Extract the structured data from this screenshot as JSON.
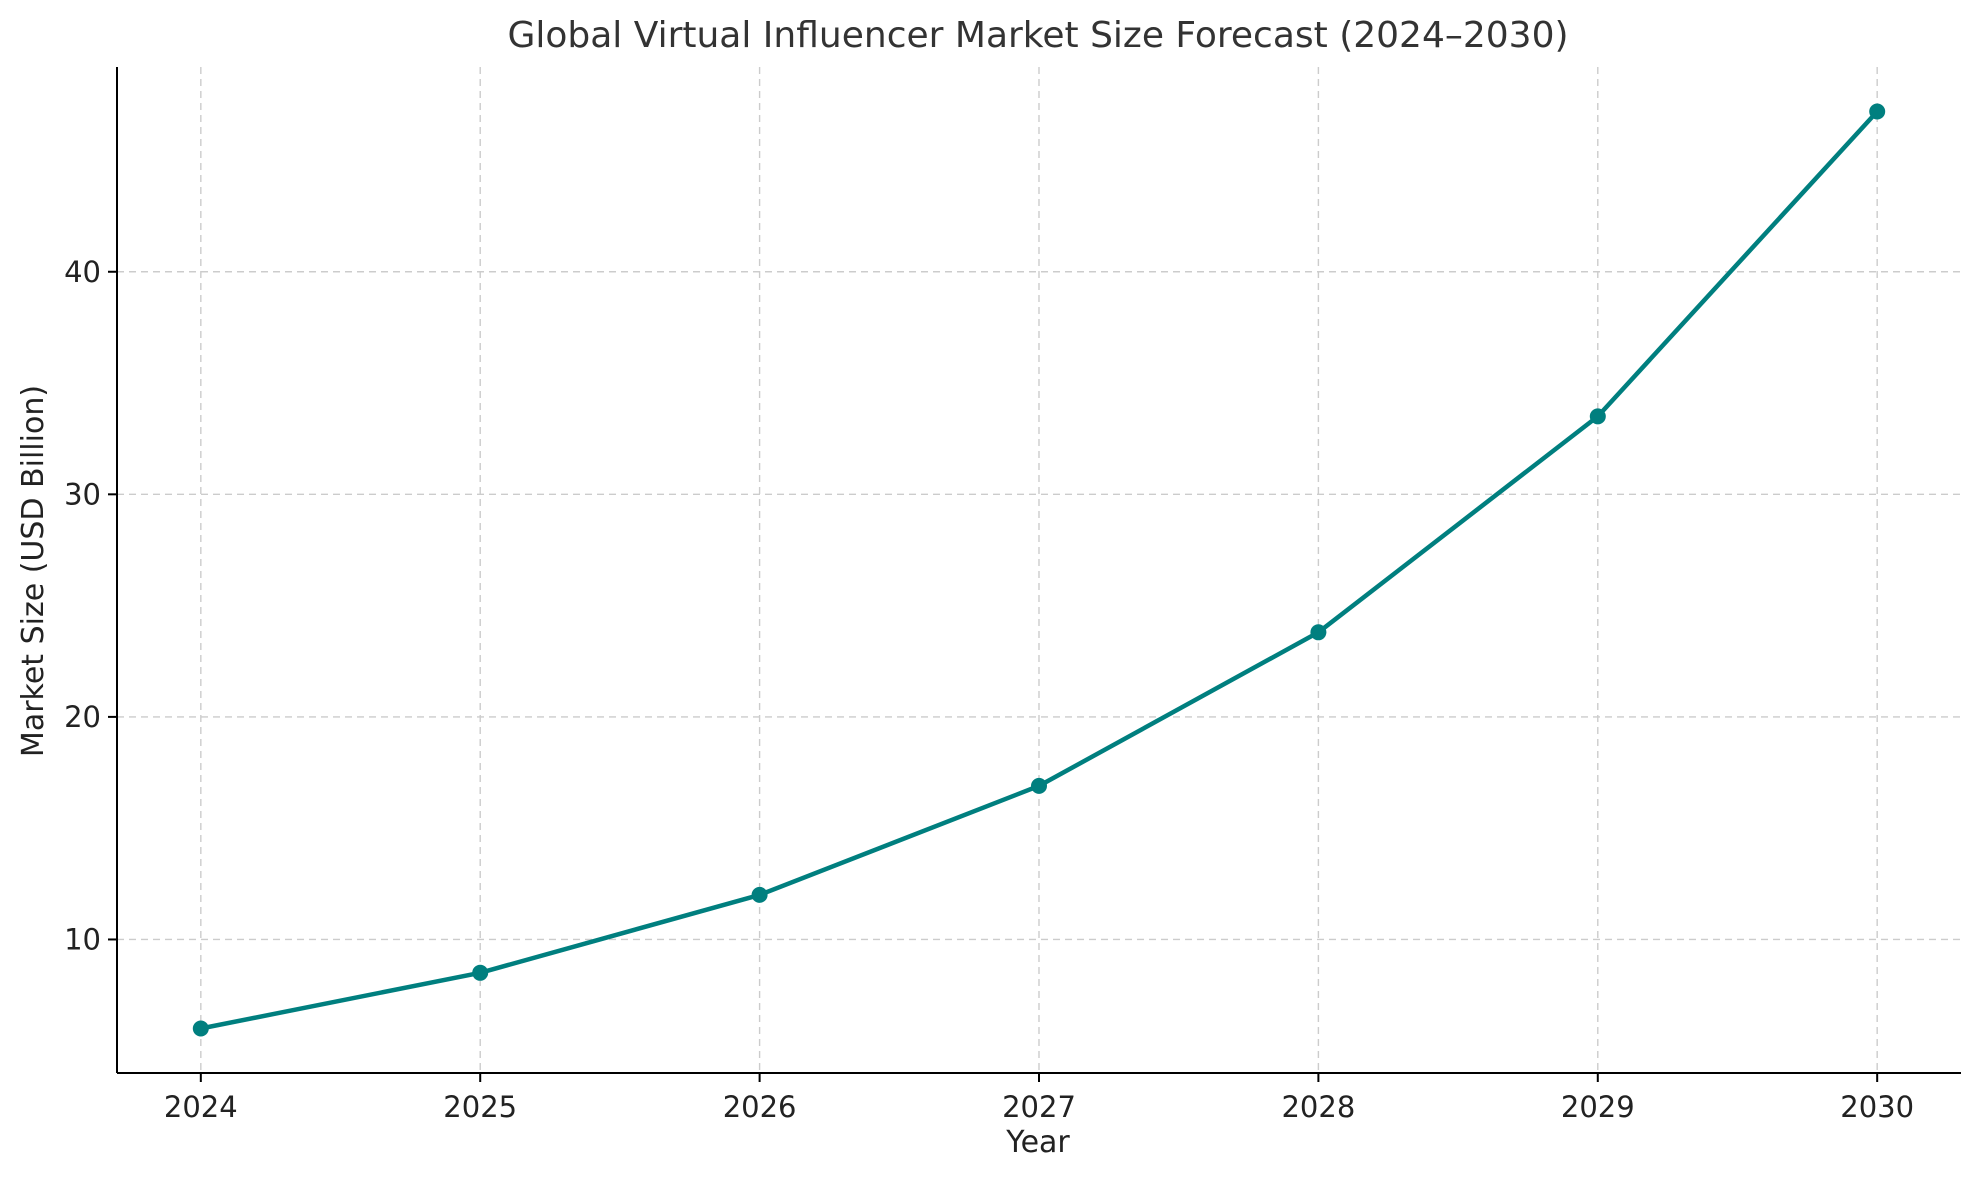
{
  "chart_data": {
    "type": "line",
    "title": "Global Virtual Influencer Market Size Forecast (2024–2030)",
    "xlabel": "Year",
    "ylabel": "Market Size (USD Billion)",
    "x": [
      "2024",
      "2025",
      "2026",
      "2027",
      "2028",
      "2029",
      "2030"
    ],
    "series": [
      {
        "values": [
          6.0,
          8.5,
          12.0,
          16.9,
          23.8,
          33.5,
          47.2
        ],
        "color": "#007f7f",
        "marker": "circle"
      }
    ],
    "xlim": [
      2023.7,
      2030.3
    ],
    "ylim": [
      4.0,
      49.2
    ],
    "yticks": [
      10,
      20,
      30,
      40
    ],
    "grid": true,
    "legend": "none"
  }
}
